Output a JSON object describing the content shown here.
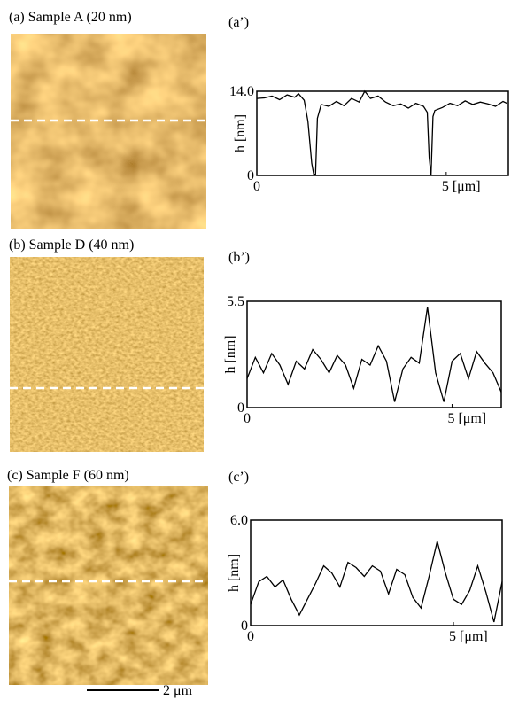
{
  "images": [
    {
      "label": "(a) Sample A (20 nm)"
    },
    {
      "label": "(b) Sample D (40 nm)"
    },
    {
      "label": "(c) Sample F (60 nm)"
    }
  ],
  "scale_bar": "2 μm",
  "chart_data": [
    {
      "type": "line",
      "title": "(a’)",
      "y_label": "h [nm]",
      "color": "#000000",
      "x": [
        0,
        0.2,
        0.4,
        0.6,
        0.8,
        1.0,
        1.1,
        1.25,
        1.35,
        1.45,
        1.5,
        1.55,
        1.6,
        1.7,
        1.9,
        2.1,
        2.3,
        2.5,
        2.7,
        2.85,
        3.0,
        3.2,
        3.4,
        3.6,
        3.8,
        4.0,
        4.2,
        4.4,
        4.5,
        4.55,
        4.6,
        4.65,
        4.7,
        4.9,
        5.1,
        5.3,
        5.5,
        5.7,
        5.9,
        6.1,
        6.3,
        6.5,
        6.6
      ],
      "values": [
        12.8,
        12.9,
        13.2,
        12.6,
        13.4,
        13.0,
        13.6,
        12.5,
        9.0,
        2.0,
        0.2,
        0.2,
        9.5,
        11.8,
        11.5,
        12.3,
        11.6,
        12.8,
        12.2,
        14.0,
        12.8,
        13.2,
        12.2,
        11.6,
        11.9,
        11.2,
        12.0,
        11.5,
        10.5,
        3.0,
        0.0,
        9.8,
        10.8,
        11.3,
        12.0,
        11.6,
        12.4,
        11.8,
        12.2,
        11.9,
        11.5,
        12.3,
        12.0
      ],
      "xlim": [
        0,
        6.64
      ],
      "xticks": [
        0,
        {
          "value": 5,
          "label": "5 [μm]"
        }
      ],
      "ylim": [
        0,
        14
      ],
      "yticks": [
        0,
        {
          "value": 14,
          "label": "14.0"
        }
      ]
    },
    {
      "type": "line",
      "title": "(b’)",
      "y_label": "h [nm]",
      "color": "#000000",
      "x": [
        0,
        0.2,
        0.4,
        0.6,
        0.8,
        1.0,
        1.2,
        1.4,
        1.6,
        1.8,
        2.0,
        2.2,
        2.4,
        2.6,
        2.8,
        3.0,
        3.2,
        3.4,
        3.6,
        3.8,
        4.0,
        4.2,
        4.4,
        4.6,
        4.8,
        5.0,
        5.2,
        5.4,
        5.6,
        5.8,
        6.0,
        6.2
      ],
      "values": [
        1.5,
        2.6,
        1.8,
        2.8,
        2.2,
        1.2,
        2.4,
        2.0,
        3.0,
        2.5,
        1.8,
        2.7,
        2.2,
        1.0,
        2.5,
        2.2,
        3.2,
        2.4,
        0.3,
        2.0,
        2.6,
        2.3,
        5.2,
        1.8,
        0.3,
        2.4,
        2.8,
        1.5,
        2.9,
        2.3,
        1.8,
        0.8
      ],
      "xlim": [
        0,
        6.2
      ],
      "xticks": [
        0,
        {
          "value": 5,
          "label": "5 [μm]"
        }
      ],
      "ylim": [
        0,
        5.5
      ],
      "yticks": [
        0,
        5.5
      ]
    },
    {
      "type": "line",
      "title": "(c’)",
      "y_label": "h [nm]",
      "color": "#000000",
      "x": [
        0,
        0.2,
        0.4,
        0.6,
        0.8,
        1.0,
        1.2,
        1.4,
        1.6,
        1.8,
        2.0,
        2.2,
        2.4,
        2.6,
        2.8,
        3.0,
        3.2,
        3.4,
        3.6,
        3.8,
        4.0,
        4.2,
        4.4,
        4.6,
        4.8,
        5.0,
        5.2,
        5.4,
        5.6,
        5.8,
        6.0,
        6.2
      ],
      "values": [
        1.2,
        2.5,
        2.8,
        2.2,
        2.6,
        1.5,
        0.6,
        1.5,
        2.4,
        3.4,
        3.0,
        2.2,
        3.6,
        3.3,
        2.8,
        3.4,
        3.1,
        1.8,
        3.2,
        2.9,
        1.6,
        1.0,
        2.8,
        4.8,
        3.0,
        1.5,
        1.2,
        2.0,
        3.4,
        1.9,
        0.2,
        2.5
      ],
      "xlim": [
        0,
        6.2
      ],
      "xticks": [
        0,
        {
          "value": 5,
          "label": "5 [μm]"
        }
      ],
      "ylim": [
        0,
        6
      ],
      "yticks": [
        0,
        {
          "value": 6,
          "label": "6.0"
        }
      ]
    }
  ]
}
